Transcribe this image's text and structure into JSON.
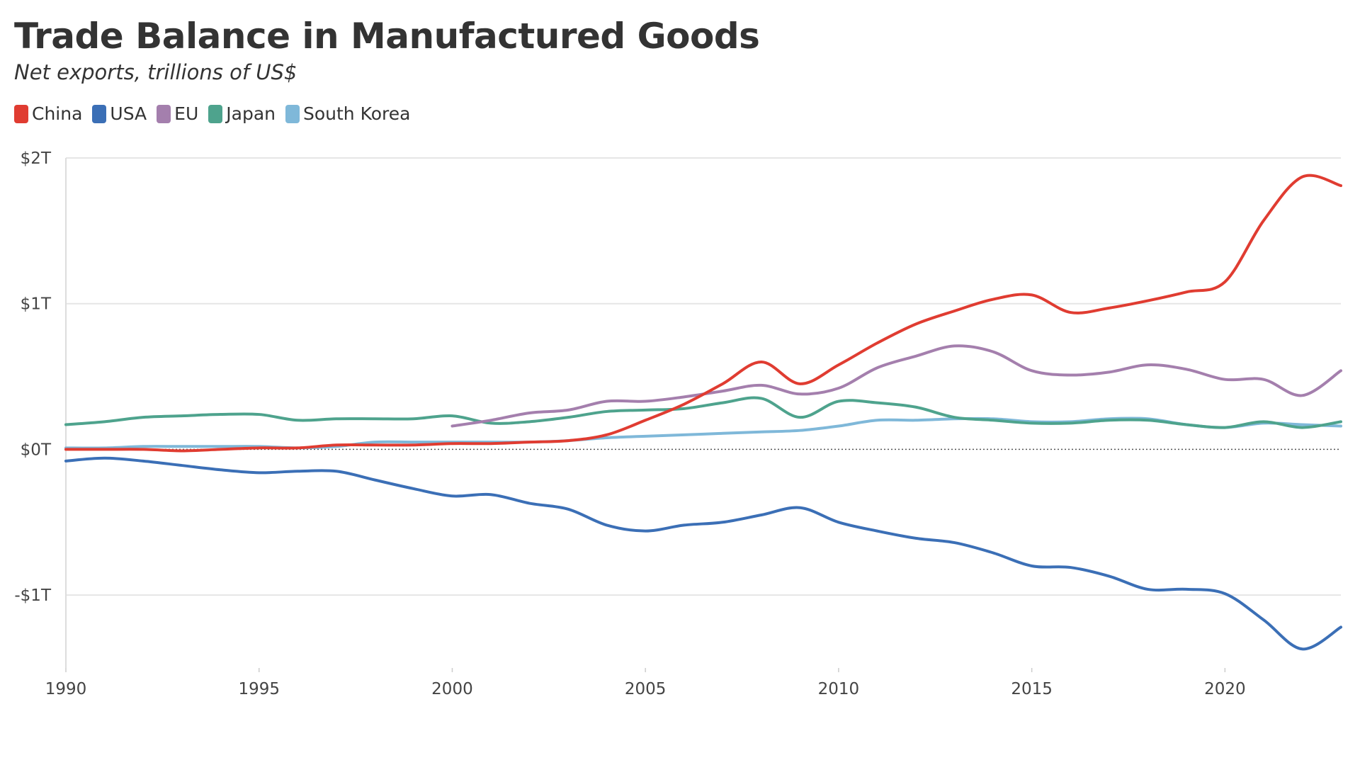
{
  "header": {
    "title": "Trade Balance in Manufactured Goods",
    "subtitle": "Net exports, trillions of US$"
  },
  "chart_data": {
    "type": "line",
    "title": "Trade Balance in Manufactured Goods",
    "subtitle": "Net exports, trillions of US$",
    "xlabel": "",
    "ylabel": "",
    "xlim": [
      1990,
      2023
    ],
    "ylim": [
      -1.5,
      2.0
    ],
    "x_ticks": [
      {
        "value": 1990,
        "label": "1990"
      },
      {
        "value": 1995,
        "label": "1995"
      },
      {
        "value": 2000,
        "label": "2000"
      },
      {
        "value": 2005,
        "label": "2005"
      },
      {
        "value": 2010,
        "label": "2010"
      },
      {
        "value": 2015,
        "label": "2015"
      },
      {
        "value": 2020,
        "label": "2020"
      }
    ],
    "y_ticks": [
      {
        "value": 2,
        "label": "$2T"
      },
      {
        "value": 1,
        "label": "$1T"
      },
      {
        "value": 0,
        "label": "$0T"
      },
      {
        "value": -1,
        "label": "-$1T"
      }
    ],
    "grid": "horizontal",
    "zero_line": "dotted",
    "legend_position": "top-left",
    "series": [
      {
        "name": "China",
        "color": "#e03c31",
        "x": [
          1990,
          1991,
          1992,
          1993,
          1994,
          1995,
          1996,
          1997,
          1998,
          1999,
          2000,
          2001,
          2002,
          2003,
          2004,
          2005,
          2006,
          2007,
          2008,
          2009,
          2010,
          2011,
          2012,
          2013,
          2014,
          2015,
          2016,
          2017,
          2018,
          2019,
          2020,
          2021,
          2022,
          2023
        ],
        "y": [
          0.0,
          0.0,
          0.0,
          -0.01,
          0.0,
          0.01,
          0.01,
          0.03,
          0.03,
          0.03,
          0.04,
          0.04,
          0.05,
          0.06,
          0.1,
          0.2,
          0.31,
          0.45,
          0.6,
          0.45,
          0.58,
          0.73,
          0.86,
          0.95,
          1.03,
          1.06,
          0.94,
          0.97,
          1.02,
          1.08,
          1.15,
          1.57,
          1.87,
          1.81
        ]
      },
      {
        "name": "USA",
        "color": "#3b6fb6",
        "x": [
          1990,
          1991,
          1992,
          1993,
          1994,
          1995,
          1996,
          1997,
          1998,
          1999,
          2000,
          2001,
          2002,
          2003,
          2004,
          2005,
          2006,
          2007,
          2008,
          2009,
          2010,
          2011,
          2012,
          2013,
          2014,
          2015,
          2016,
          2017,
          2018,
          2019,
          2020,
          2021,
          2022,
          2023
        ],
        "y": [
          -0.08,
          -0.06,
          -0.08,
          -0.11,
          -0.14,
          -0.16,
          -0.15,
          -0.15,
          -0.21,
          -0.27,
          -0.32,
          -0.31,
          -0.37,
          -0.41,
          -0.52,
          -0.56,
          -0.52,
          -0.5,
          -0.45,
          -0.4,
          -0.5,
          -0.56,
          -0.61,
          -0.64,
          -0.71,
          -0.8,
          -0.81,
          -0.87,
          -0.96,
          -0.96,
          -0.99,
          -1.17,
          -1.37,
          -1.22
        ]
      },
      {
        "name": "EU",
        "color": "#a47fad",
        "x": [
          2000,
          2001,
          2002,
          2003,
          2004,
          2005,
          2006,
          2007,
          2008,
          2009,
          2010,
          2011,
          2012,
          2013,
          2014,
          2015,
          2016,
          2017,
          2018,
          2019,
          2020,
          2021,
          2022,
          2023
        ],
        "y": [
          0.16,
          0.2,
          0.25,
          0.27,
          0.33,
          0.33,
          0.36,
          0.4,
          0.44,
          0.38,
          0.42,
          0.56,
          0.64,
          0.71,
          0.67,
          0.54,
          0.51,
          0.53,
          0.58,
          0.55,
          0.48,
          0.48,
          0.37,
          0.54
        ]
      },
      {
        "name": "Japan",
        "color": "#4ea38d",
        "x": [
          1990,
          1991,
          1992,
          1993,
          1994,
          1995,
          1996,
          1997,
          1998,
          1999,
          2000,
          2001,
          2002,
          2003,
          2004,
          2005,
          2006,
          2007,
          2008,
          2009,
          2010,
          2011,
          2012,
          2013,
          2014,
          2015,
          2016,
          2017,
          2018,
          2019,
          2020,
          2021,
          2022,
          2023
        ],
        "y": [
          0.17,
          0.19,
          0.22,
          0.23,
          0.24,
          0.24,
          0.2,
          0.21,
          0.21,
          0.21,
          0.23,
          0.18,
          0.19,
          0.22,
          0.26,
          0.27,
          0.28,
          0.32,
          0.35,
          0.22,
          0.33,
          0.32,
          0.29,
          0.22,
          0.2,
          0.18,
          0.18,
          0.2,
          0.2,
          0.17,
          0.15,
          0.19,
          0.15,
          0.19
        ]
      },
      {
        "name": "South Korea",
        "color": "#7fb8d9",
        "x": [
          1990,
          1991,
          1992,
          1993,
          1994,
          1995,
          1996,
          1997,
          1998,
          1999,
          2000,
          2001,
          2002,
          2003,
          2004,
          2005,
          2006,
          2007,
          2008,
          2009,
          2010,
          2011,
          2012,
          2013,
          2014,
          2015,
          2016,
          2017,
          2018,
          2019,
          2020,
          2021,
          2022,
          2023
        ],
        "y": [
          0.01,
          0.01,
          0.02,
          0.02,
          0.02,
          0.02,
          0.01,
          0.02,
          0.05,
          0.05,
          0.05,
          0.05,
          0.05,
          0.06,
          0.08,
          0.09,
          0.1,
          0.11,
          0.12,
          0.13,
          0.16,
          0.2,
          0.2,
          0.21,
          0.21,
          0.19,
          0.19,
          0.21,
          0.21,
          0.17,
          0.15,
          0.18,
          0.17,
          0.16
        ]
      }
    ]
  }
}
